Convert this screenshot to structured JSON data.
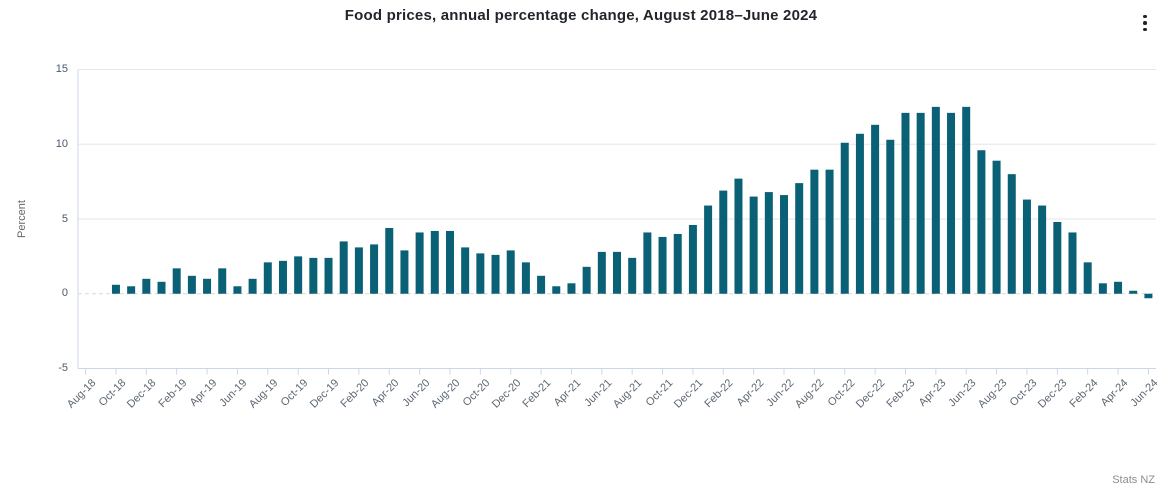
{
  "header": {
    "title": "Food prices, annual percentage change, August 2018–June 2024"
  },
  "chart_data": {
    "type": "bar",
    "title": "Food prices, annual percentage change, August 2018–June 2024",
    "xlabel": "",
    "ylabel": "Percent",
    "ylim": [
      -5,
      15
    ],
    "yticks": [
      15,
      10,
      5,
      0,
      -5
    ],
    "grid": true,
    "legend": "none",
    "bar_color": "#0a6175",
    "axis_line_color": "#ccd6eb",
    "gridline_color": "#e6e6e6",
    "zero_line_color": "#d8d8d8",
    "credit": "Stats NZ",
    "categories": [
      "Aug-18",
      "Sep-18",
      "Oct-18",
      "Nov-18",
      "Dec-18",
      "Jan-19",
      "Feb-19",
      "Mar-19",
      "Apr-19",
      "May-19",
      "Jun-19",
      "Jul-19",
      "Aug-19",
      "Sep-19",
      "Oct-19",
      "Nov-19",
      "Dec-19",
      "Jan-20",
      "Feb-20",
      "Mar-20",
      "Apr-20",
      "May-20",
      "Jun-20",
      "Jul-20",
      "Aug-20",
      "Sep-20",
      "Oct-20",
      "Nov-20",
      "Dec-20",
      "Jan-21",
      "Feb-21",
      "Mar-21",
      "Apr-21",
      "May-21",
      "Jun-21",
      "Jul-21",
      "Aug-21",
      "Sep-21",
      "Oct-21",
      "Nov-21",
      "Dec-21",
      "Jan-22",
      "Feb-22",
      "Mar-22",
      "Apr-22",
      "May-22",
      "Jun-22",
      "Jul-22",
      "Aug-22",
      "Sep-22",
      "Oct-22",
      "Nov-22",
      "Dec-22",
      "Jan-23",
      "Feb-23",
      "Mar-23",
      "Apr-23",
      "May-23",
      "Jun-23",
      "Jul-23",
      "Aug-23",
      "Sep-23",
      "Oct-23",
      "Nov-23",
      "Dec-23",
      "Jan-24",
      "Feb-24",
      "Mar-24",
      "Apr-24",
      "May-24",
      "Jun-24"
    ],
    "values": [
      0.0,
      0.0,
      0.6,
      0.5,
      1.0,
      0.8,
      1.7,
      1.2,
      1.0,
      1.7,
      0.5,
      1.0,
      2.1,
      2.2,
      2.5,
      2.4,
      2.4,
      3.5,
      3.1,
      3.3,
      4.4,
      2.9,
      4.1,
      4.2,
      4.2,
      3.1,
      2.7,
      2.6,
      2.9,
      2.1,
      1.2,
      0.5,
      0.7,
      1.8,
      2.8,
      2.8,
      2.4,
      4.1,
      3.8,
      4.0,
      4.6,
      5.9,
      6.9,
      7.7,
      6.5,
      6.8,
      6.6,
      7.4,
      8.3,
      8.3,
      10.1,
      10.7,
      11.3,
      10.3,
      12.1,
      12.1,
      12.5,
      12.1,
      12.5,
      9.6,
      8.9,
      8.0,
      6.3,
      5.9,
      4.8,
      4.1,
      2.1,
      0.7,
      0.8,
      0.2,
      -0.3
    ],
    "x_tick_labels": [
      "Aug-18",
      "Oct-18",
      "Dec-18",
      "Feb-19",
      "Apr-19",
      "Jun-19",
      "Aug-19",
      "Oct-19",
      "Dec-19",
      "Feb-20",
      "Apr-20",
      "Jun-20",
      "Aug-20",
      "Oct-20",
      "Dec-20",
      "Feb-21",
      "Apr-21",
      "Jun-21",
      "Aug-21",
      "Oct-21",
      "Dec-21",
      "Feb-22",
      "Apr-22",
      "Jun-22",
      "Aug-22",
      "Oct-22",
      "Dec-22",
      "Feb-23",
      "Apr-23",
      "Jun-23",
      "Aug-23",
      "Oct-23",
      "Dec-23",
      "Feb-24",
      "Apr-24",
      "Jun-24"
    ]
  }
}
